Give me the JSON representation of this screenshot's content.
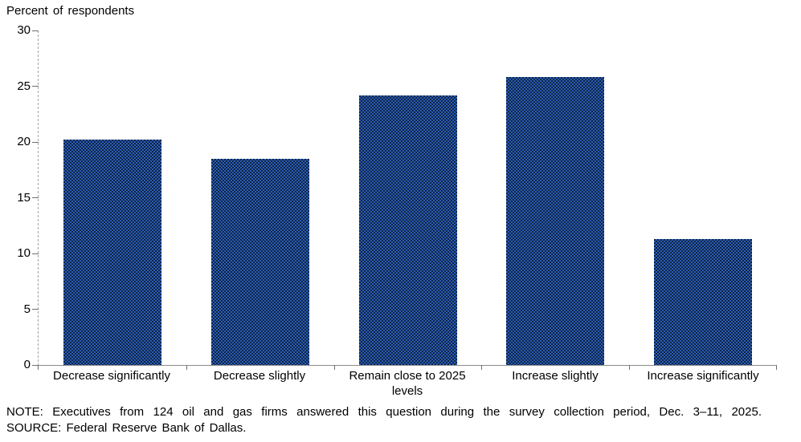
{
  "chart_data": {
    "type": "bar",
    "title": "Percent of respondents",
    "ylabel": "Percent of respondents",
    "xlabel": "",
    "categories": [
      "Decrease significantly",
      "Decrease slightly",
      "Remain close to 2025 levels",
      "Increase slightly",
      "Increase significantly"
    ],
    "values": [
      20.2,
      18.5,
      24.2,
      25.8,
      11.3
    ],
    "ylim": [
      0,
      30
    ],
    "yticks": [
      0,
      5,
      10,
      15,
      20,
      25,
      30
    ],
    "grid": false,
    "legend": "none",
    "bar_color_average": "#1c4080",
    "bar_pattern_colors": [
      "#2e5cb8",
      "#0a2440"
    ],
    "axis_color": "#8c8c8c",
    "note": "NOTE:  Executives  from 124 oil and gas firms answered  this question  during the survey  collection  period, Dec. 3–11,  2025.",
    "source": "SOURCE:  Federal  Reserve  Bank of Dallas."
  }
}
